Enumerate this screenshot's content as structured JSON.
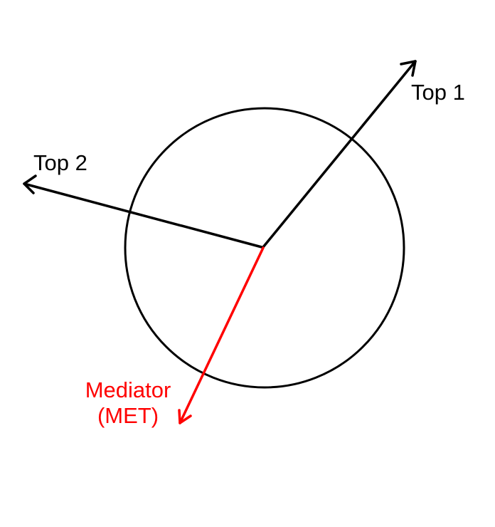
{
  "labels": {
    "top1": "Top 1",
    "top2": "Top 2",
    "mediator_line1": "Mediator",
    "mediator_line2": "(MET)"
  },
  "colors": {
    "arrow_default": "#000000",
    "arrow_mediator": "#ff0000",
    "circle_stroke": "#000000",
    "background": "#ffffff"
  }
}
